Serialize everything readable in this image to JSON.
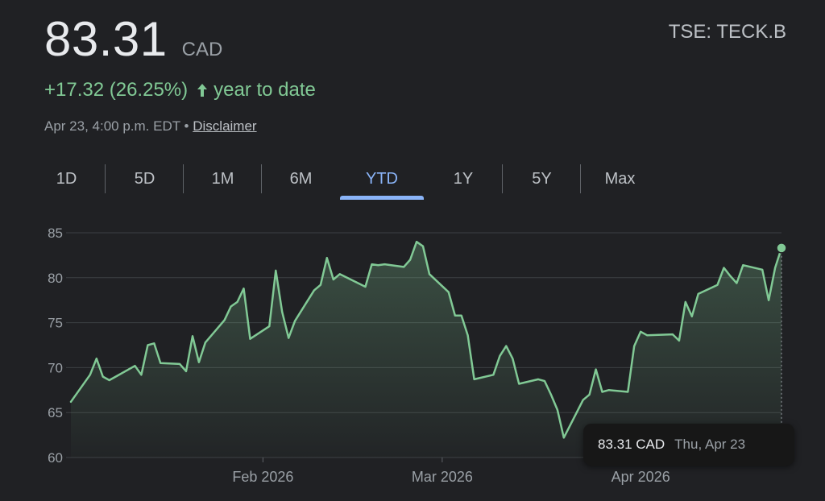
{
  "quote": {
    "price": "83.31",
    "currency": "CAD",
    "ticker": "TSE: TECK.B",
    "change": "+17.32 (26.25%)",
    "change_suffix": "year to date",
    "timestamp": "Apr 23, 4:00 p.m. EDT •",
    "disclaimer": "Disclaimer"
  },
  "tabs": [
    {
      "label": "1D",
      "active": false
    },
    {
      "label": "5D",
      "active": false
    },
    {
      "label": "1M",
      "active": false
    },
    {
      "label": "6M",
      "active": false
    },
    {
      "label": "YTD",
      "active": true
    },
    {
      "label": "1Y",
      "active": false
    },
    {
      "label": "5Y",
      "active": false
    },
    {
      "label": "Max",
      "active": false
    }
  ],
  "tooltip": {
    "value": "83.31 CAD",
    "date": "Thu, Apr 23"
  },
  "colors": {
    "positive": "#81c995",
    "accent": "#8ab4f8",
    "background": "#202124",
    "grid": "#3c4043"
  },
  "icons": {
    "change_arrow": "arrow-up-icon"
  },
  "chart_data": {
    "type": "area",
    "ylim": [
      60,
      85
    ],
    "yticks": [
      "85",
      "80",
      "75",
      "70",
      "65",
      "60"
    ],
    "xticks": [
      "Feb 2026",
      "Mar 2026",
      "Apr 2026"
    ],
    "grid": true,
    "series": [
      {
        "values": [
          {
            "x": "2026-01-02",
            "y": 66.2
          },
          {
            "x": "2026-01-05",
            "y": 69.2
          },
          {
            "x": "2026-01-06",
            "y": 71.0
          },
          {
            "x": "2026-01-07",
            "y": 69.0
          },
          {
            "x": "2026-01-08",
            "y": 68.6
          },
          {
            "x": "2026-01-09",
            "y": 69.0
          },
          {
            "x": "2026-01-12",
            "y": 70.2
          },
          {
            "x": "2026-01-13",
            "y": 69.2
          },
          {
            "x": "2026-01-14",
            "y": 72.5
          },
          {
            "x": "2026-01-15",
            "y": 72.7
          },
          {
            "x": "2026-01-16",
            "y": 70.5
          },
          {
            "x": "2026-01-19",
            "y": 70.4
          },
          {
            "x": "2026-01-20",
            "y": 69.6
          },
          {
            "x": "2026-01-21",
            "y": 73.5
          },
          {
            "x": "2026-01-22",
            "y": 70.6
          },
          {
            "x": "2026-01-23",
            "y": 72.8
          },
          {
            "x": "2026-01-26",
            "y": 75.3
          },
          {
            "x": "2026-01-27",
            "y": 76.8
          },
          {
            "x": "2026-01-28",
            "y": 77.3
          },
          {
            "x": "2026-01-29",
            "y": 78.8
          },
          {
            "x": "2026-01-30",
            "y": 73.2
          },
          {
            "x": "2026-02-02",
            "y": 74.6
          },
          {
            "x": "2026-02-03",
            "y": 80.8
          },
          {
            "x": "2026-02-04",
            "y": 76.2
          },
          {
            "x": "2026-02-05",
            "y": 73.3
          },
          {
            "x": "2026-02-06",
            "y": 75.2
          },
          {
            "x": "2026-02-09",
            "y": 78.6
          },
          {
            "x": "2026-02-10",
            "y": 79.2
          },
          {
            "x": "2026-02-11",
            "y": 82.2
          },
          {
            "x": "2026-02-12",
            "y": 79.8
          },
          {
            "x": "2026-02-13",
            "y": 80.4
          },
          {
            "x": "2026-02-17",
            "y": 79.0
          },
          {
            "x": "2026-02-18",
            "y": 81.5
          },
          {
            "x": "2026-02-19",
            "y": 81.4
          },
          {
            "x": "2026-02-20",
            "y": 81.5
          },
          {
            "x": "2026-02-23",
            "y": 81.2
          },
          {
            "x": "2026-02-24",
            "y": 82.0
          },
          {
            "x": "2026-02-25",
            "y": 84.0
          },
          {
            "x": "2026-02-26",
            "y": 83.5
          },
          {
            "x": "2026-02-27",
            "y": 80.4
          },
          {
            "x": "2026-03-02",
            "y": 78.4
          },
          {
            "x": "2026-03-03",
            "y": 75.8
          },
          {
            "x": "2026-03-04",
            "y": 75.8
          },
          {
            "x": "2026-03-05",
            "y": 73.6
          },
          {
            "x": "2026-03-06",
            "y": 68.7
          },
          {
            "x": "2026-03-09",
            "y": 69.2
          },
          {
            "x": "2026-03-10",
            "y": 71.3
          },
          {
            "x": "2026-03-11",
            "y": 72.4
          },
          {
            "x": "2026-03-12",
            "y": 71.0
          },
          {
            "x": "2026-03-13",
            "y": 68.2
          },
          {
            "x": "2026-03-16",
            "y": 68.7
          },
          {
            "x": "2026-03-17",
            "y": 68.5
          },
          {
            "x": "2026-03-18",
            "y": 67.0
          },
          {
            "x": "2026-03-19",
            "y": 65.3
          },
          {
            "x": "2026-03-20",
            "y": 62.2
          },
          {
            "x": "2026-03-23",
            "y": 66.4
          },
          {
            "x": "2026-03-24",
            "y": 67.0
          },
          {
            "x": "2026-03-25",
            "y": 69.8
          },
          {
            "x": "2026-03-26",
            "y": 67.3
          },
          {
            "x": "2026-03-27",
            "y": 67.5
          },
          {
            "x": "2026-03-30",
            "y": 67.3
          },
          {
            "x": "2026-03-31",
            "y": 72.4
          },
          {
            "x": "2026-04-01",
            "y": 74.0
          },
          {
            "x": "2026-04-02",
            "y": 73.6
          },
          {
            "x": "2026-04-06",
            "y": 73.7
          },
          {
            "x": "2026-04-07",
            "y": 73.0
          },
          {
            "x": "2026-04-08",
            "y": 77.3
          },
          {
            "x": "2026-04-09",
            "y": 75.7
          },
          {
            "x": "2026-04-10",
            "y": 78.2
          },
          {
            "x": "2026-04-13",
            "y": 79.2
          },
          {
            "x": "2026-04-14",
            "y": 81.1
          },
          {
            "x": "2026-04-15",
            "y": 80.2
          },
          {
            "x": "2026-04-16",
            "y": 79.4
          },
          {
            "x": "2026-04-17",
            "y": 81.4
          },
          {
            "x": "2026-04-20",
            "y": 80.9
          },
          {
            "x": "2026-04-21",
            "y": 77.5
          },
          {
            "x": "2026-04-22",
            "y": 81.1
          },
          {
            "x": "2026-04-23",
            "y": 83.31
          }
        ]
      }
    ]
  }
}
